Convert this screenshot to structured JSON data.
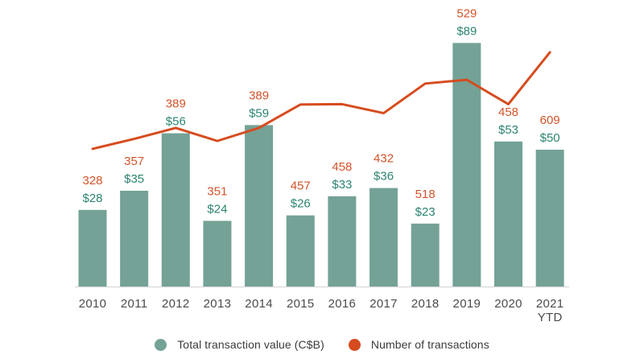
{
  "chart_data": {
    "type": "bar+line combo",
    "title": "",
    "xlabel": "",
    "ylabel": "",
    "grid": false,
    "legend_position": "bottom-center",
    "data_labels_visible": true,
    "axis_line_color": "#dcdcdc",
    "category_label_color": "#4b4b4d",
    "background_color": "#ffffff",
    "categories": [
      "2010",
      "2011",
      "2012",
      "2013",
      "2014",
      "2015",
      "2016",
      "2017",
      "2018",
      "2019",
      "2020",
      "2021 YTD"
    ],
    "series": [
      {
        "name": "Total transaction value (C$B)",
        "type": "bar",
        "color": "#74a296",
        "value_prefix": "$",
        "label_color": "#2c8470",
        "values": [
          28,
          35,
          56,
          24,
          59,
          26,
          33,
          36,
          23,
          89,
          53,
          50
        ]
      },
      {
        "name": "Number of transactions",
        "type": "line",
        "color": "#d64c1f",
        "value_prefix": "",
        "label_color": "#d3542a",
        "values": [
          328,
          357,
          389,
          351,
          389,
          457,
          458,
          432,
          518,
          529,
          458,
          609
        ]
      }
    ]
  }
}
